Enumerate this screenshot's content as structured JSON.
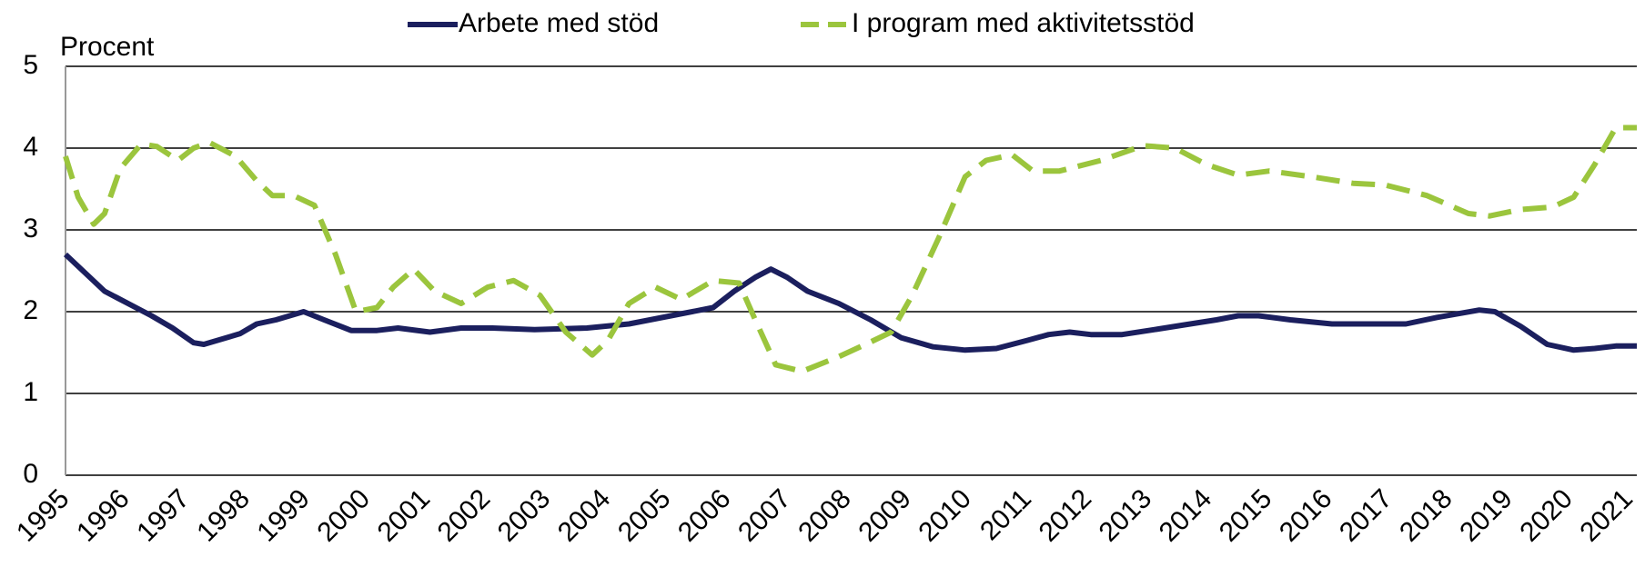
{
  "chart_data": {
    "type": "line",
    "y_label": "Procent",
    "legend": "top",
    "grid": true,
    "xlim": [
      1995,
      2021.13
    ],
    "xticks": [
      1995,
      1996,
      1997,
      1998,
      1999,
      2000,
      2001,
      2002,
      2003,
      2004,
      2005,
      2006,
      2007,
      2008,
      2009,
      2010,
      2011,
      2012,
      2013,
      2014,
      2015,
      2016,
      2017,
      2018,
      2019,
      2020,
      2021
    ],
    "ylim": [
      0,
      5
    ],
    "yticks": [
      0,
      1,
      2,
      3,
      4,
      5
    ],
    "series": [
      {
        "name": "Arbete med stöd",
        "color": "#1b1f5e",
        "dash": false,
        "x": [
          1995,
          1995.65,
          1996.17,
          1996.43,
          1996.78,
          1997.13,
          1997.3,
          1997.9,
          1998.18,
          1998.5,
          1998.96,
          1999.3,
          1999.75,
          2000.18,
          2000.53,
          2001.06,
          2001.58,
          2002.1,
          2002.8,
          2003.67,
          2004.37,
          2005.07,
          2005.77,
          2006.12,
          2006.47,
          2006.73,
          2007.0,
          2007.34,
          2007.86,
          2008.39,
          2008.9,
          2009.43,
          2009.96,
          2010.48,
          2011.0,
          2011.35,
          2011.7,
          2012.05,
          2012.57,
          2013.1,
          2013.62,
          2014.14,
          2014.5,
          2014.84,
          2015.37,
          2016.06,
          2016.59,
          2017.29,
          2017.81,
          2018.51,
          2018.77,
          2019.2,
          2019.64,
          2020.08,
          2020.43,
          2020.78,
          2021.13
        ],
        "values": [
          2.7,
          2.25,
          2.05,
          1.95,
          1.8,
          1.62,
          1.6,
          1.73,
          1.85,
          1.9,
          2.0,
          1.9,
          1.77,
          1.77,
          1.8,
          1.75,
          1.8,
          1.8,
          1.78,
          1.8,
          1.85,
          1.95,
          2.05,
          2.25,
          2.42,
          2.52,
          2.42,
          2.25,
          2.1,
          1.9,
          1.68,
          1.57,
          1.53,
          1.55,
          1.65,
          1.72,
          1.75,
          1.72,
          1.72,
          1.78,
          1.84,
          1.9,
          1.95,
          1.95,
          1.9,
          1.85,
          1.85,
          1.85,
          1.93,
          2.02,
          2.0,
          1.82,
          1.6,
          1.53,
          1.55,
          1.58,
          1.58
        ]
      },
      {
        "name": "I program med aktivitetsstöd",
        "color": "#9bc53d",
        "dash": true,
        "x": [
          1995,
          1995.21,
          1995.47,
          1995.65,
          1995.91,
          1996.26,
          1996.52,
          1996.87,
          1997.13,
          1997.39,
          1997.83,
          1998.18,
          1998.44,
          1998.79,
          1999.14,
          1999.49,
          1999.83,
          2000.18,
          2000.45,
          2000.79,
          2001.14,
          2001.58,
          2002.02,
          2002.45,
          2002.89,
          2003.32,
          2003.76,
          2004.02,
          2004.37,
          2004.81,
          2005.24,
          2005.77,
          2006.2,
          2006.47,
          2006.81,
          2007.25,
          2007.86,
          2008.39,
          2008.73,
          2009.08,
          2009.52,
          2009.96,
          2010.31,
          2010.74,
          2011.09,
          2011.53,
          2012.22,
          2012.92,
          2013.45,
          2013.97,
          2014.5,
          2015.02,
          2015.72,
          2016.41,
          2016.94,
          2017.64,
          2018.33,
          2018.68,
          2019.2,
          2019.73,
          2020.08,
          2020.43,
          2020.78,
          2021.13
        ],
        "values": [
          3.9,
          3.4,
          3.07,
          3.2,
          3.75,
          4.05,
          4.02,
          3.85,
          4.0,
          4.07,
          3.9,
          3.6,
          3.42,
          3.42,
          3.3,
          2.7,
          2.0,
          2.05,
          2.3,
          2.52,
          2.25,
          2.1,
          2.3,
          2.38,
          2.2,
          1.75,
          1.47,
          1.65,
          2.1,
          2.3,
          2.15,
          2.38,
          2.35,
          1.9,
          1.35,
          1.27,
          1.45,
          1.63,
          1.75,
          2.2,
          2.9,
          3.65,
          3.85,
          3.92,
          3.72,
          3.72,
          3.85,
          4.03,
          4.0,
          3.8,
          3.67,
          3.72,
          3.65,
          3.57,
          3.55,
          3.42,
          3.2,
          3.17,
          3.25,
          3.28,
          3.4,
          3.8,
          4.25,
          4.25
        ]
      }
    ]
  }
}
